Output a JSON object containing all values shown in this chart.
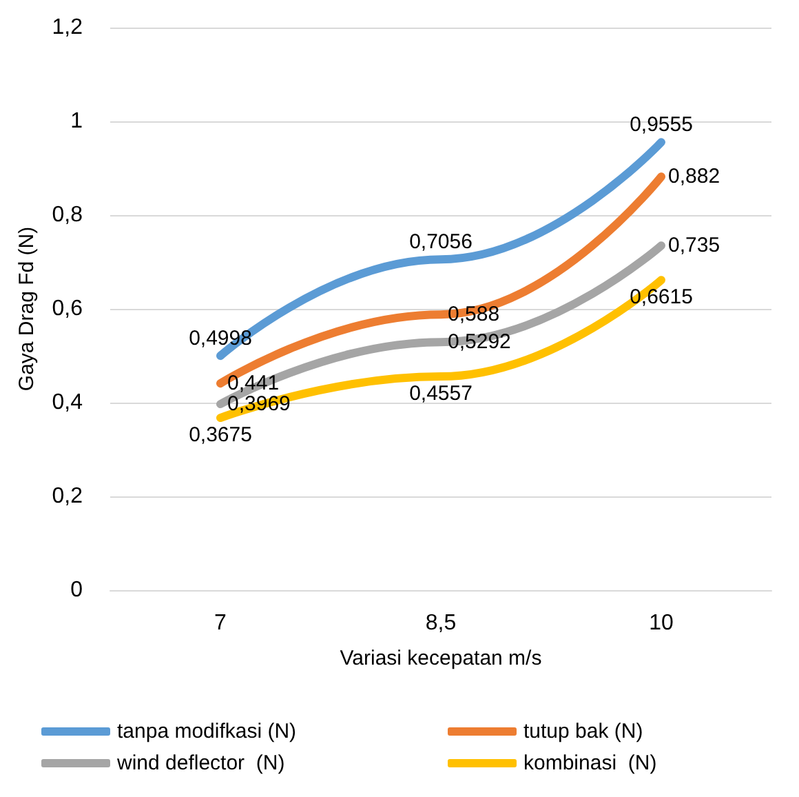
{
  "chart_data": {
    "type": "line",
    "xlabel": "Variasi kecepatan m/s",
    "ylabel": "Gaya Drag Fd (N)",
    "categories": [
      "7",
      "8,5",
      "10"
    ],
    "series": [
      {
        "name": "tanpa modifkasi (N)",
        "color": "#5b9bd5",
        "values": [
          0.4998,
          0.7056,
          0.9555
        ],
        "value_labels": [
          "0,4998",
          "0,7056",
          "0,9555"
        ]
      },
      {
        "name": "tutup bak (N)",
        "color": "#ed7d31",
        "values": [
          0.441,
          0.588,
          0.882
        ],
        "value_labels": [
          "0,441",
          "0,588",
          "0,882"
        ]
      },
      {
        "name": "wind deflector  (N)",
        "color": "#a5a5a5",
        "values": [
          0.3969,
          0.5292,
          0.735
        ],
        "value_labels": [
          "0,3969",
          "0,5292",
          "0,735"
        ]
      },
      {
        "name": "kombinasi  (N)",
        "color": "#ffc000",
        "values": [
          0.3675,
          0.4557,
          0.6615
        ],
        "value_labels": [
          "0,3675",
          "0,4557",
          "0,6615"
        ]
      }
    ],
    "ylim": [
      0,
      1.2
    ],
    "yticks": [
      {
        "value": 0,
        "label": "0"
      },
      {
        "value": 0.2,
        "label": "0,2"
      },
      {
        "value": 0.4,
        "label": "0,4"
      },
      {
        "value": 0.6,
        "label": "0,6"
      },
      {
        "value": 0.8,
        "label": "0,8"
      },
      {
        "value": 1,
        "label": "1"
      },
      {
        "value": 1.2,
        "label": "1,2"
      }
    ],
    "grid": "y",
    "legend": "bottom",
    "marker": "none",
    "line_style": "solid"
  }
}
